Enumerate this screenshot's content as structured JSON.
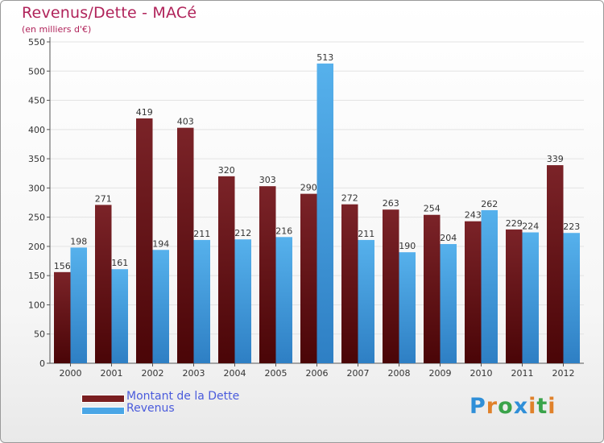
{
  "title": "Revenus/Dette - MACé",
  "subtitle": "(en milliers d'€)",
  "colors": {
    "dette": "#7a1e20",
    "revenus": "#4aa6e6",
    "title": "#b0235a",
    "legend_text": "#4a5bdc"
  },
  "logo": {
    "letters": [
      "P",
      "r",
      "o",
      "x",
      "i",
      "t",
      "i"
    ],
    "colors": [
      "#2f8fd8",
      "#e0812a",
      "#3aa34a",
      "#2f8fd8",
      "#e0812a",
      "#3aa34a",
      "#e0812a"
    ]
  },
  "chart_data": {
    "type": "bar",
    "categories": [
      "2000",
      "2001",
      "2002",
      "2003",
      "2004",
      "2005",
      "2006",
      "2007",
      "2008",
      "2009",
      "2010",
      "2011",
      "2012"
    ],
    "series": [
      {
        "name": "Montant de la Dette",
        "values": [
          156,
          271,
          419,
          403,
          320,
          303,
          290,
          272,
          263,
          254,
          243,
          229,
          339
        ]
      },
      {
        "name": "Revenus",
        "values": [
          198,
          161,
          194,
          211,
          212,
          216,
          513,
          211,
          190,
          204,
          262,
          224,
          223
        ]
      }
    ],
    "yticks": [
      "0",
      "50",
      "100",
      "150",
      "200",
      "250",
      "300",
      "350",
      "400",
      "450",
      "500",
      "550"
    ],
    "ylim": [
      0,
      550
    ],
    "grid": true,
    "legend": "bottom-left"
  }
}
